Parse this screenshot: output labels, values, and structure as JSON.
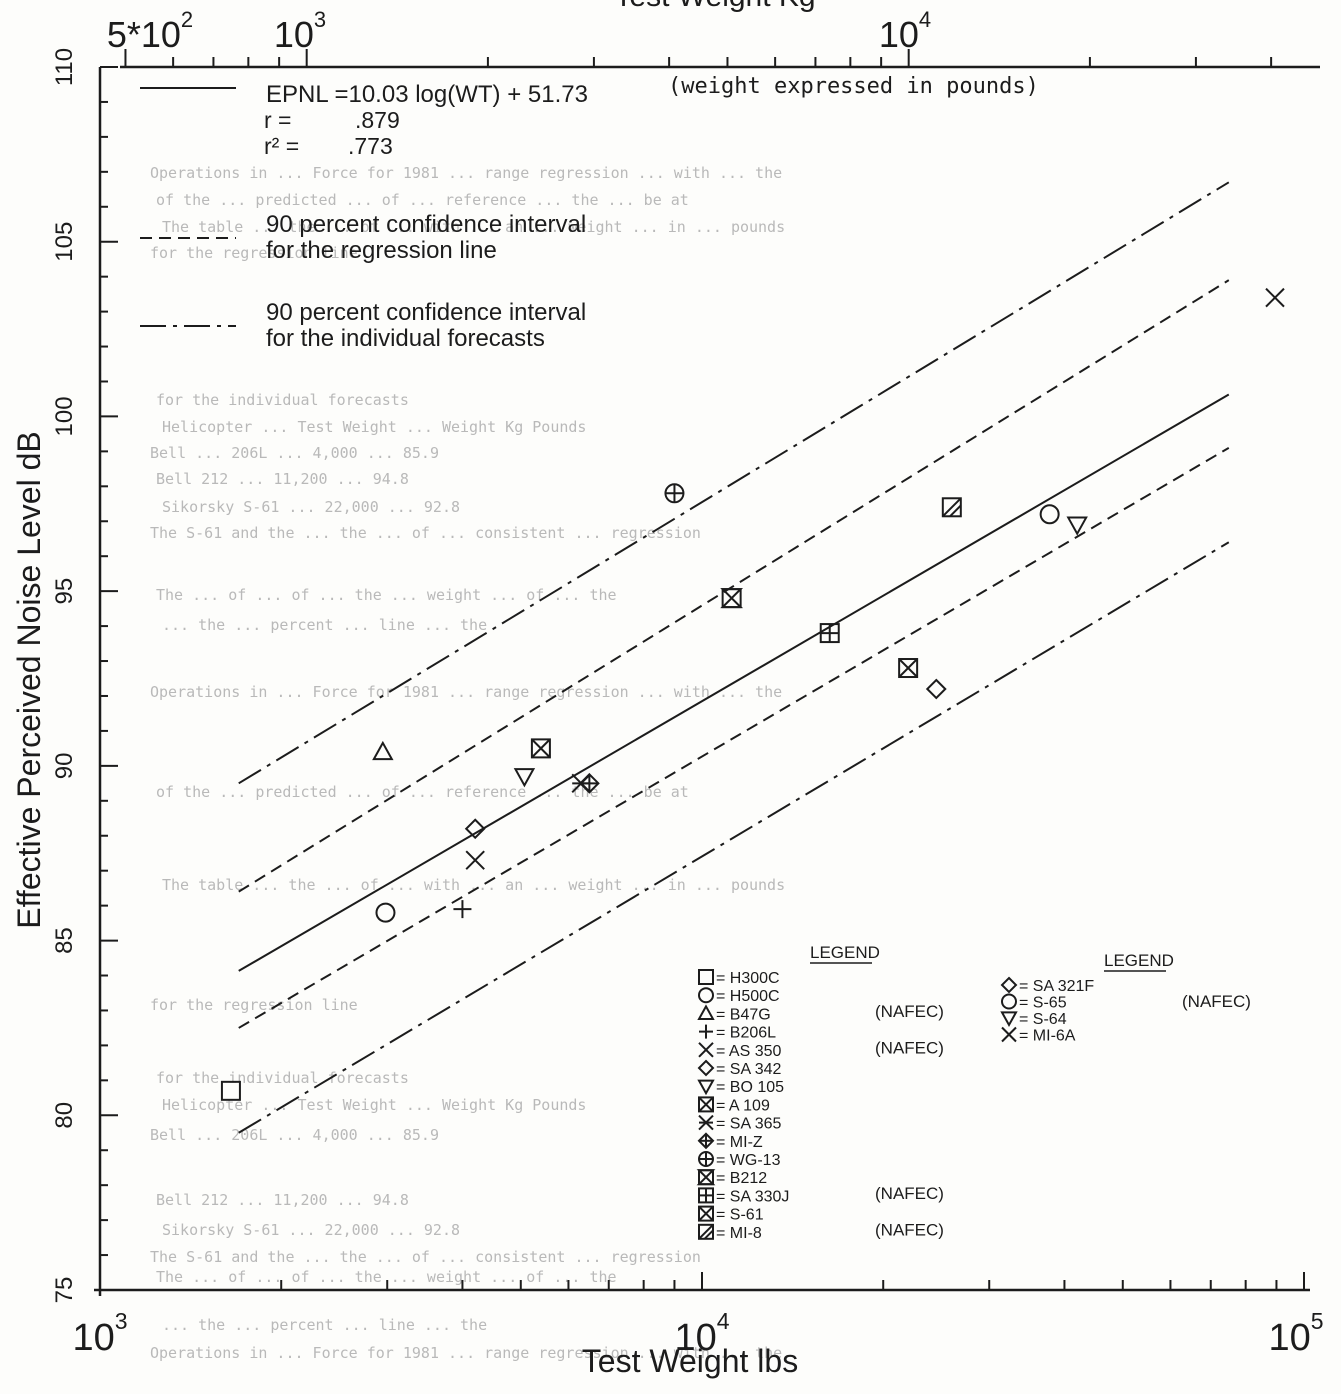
{
  "chart_data": {
    "type": "scatter",
    "xscale": "log",
    "xlabel": "Test Weight lbs",
    "ylabel": "Effective Perceived Noise Level dB",
    "top_axis_label": "Test Weight Kg",
    "xlim": [
      1000,
      100000
    ],
    "ylim": [
      75,
      110
    ],
    "top_xlim_kg": [
      453.6,
      45360
    ],
    "bottom_tick_labels": [
      "10^3",
      "10^4",
      "10^5"
    ],
    "top_tick_labels": [
      "5*10^2",
      "10^3",
      "10^4"
    ],
    "y_tick_labels": [
      "75",
      "80",
      "85",
      "90",
      "95",
      "100",
      "105",
      "110"
    ],
    "y_tick_values": [
      75,
      80,
      85,
      90,
      95,
      100,
      105,
      110
    ],
    "regression": {
      "equation": "EPNL =10.03 log(WT) + 51.73",
      "note": "(weight expressed in pounds)",
      "r_label": "r =",
      "r_value": ".879",
      "r2_label": "r² =",
      "r2_value": ".773",
      "slope": 10.03,
      "intercept": 51.73,
      "x_range": [
        1700,
        75000
      ]
    },
    "bands": [
      {
        "name": "90 percent confidence interval for the regression line",
        "style": "dashed",
        "lower": [
          [
            1700,
            82.5
          ],
          [
            75000,
            99.1
          ]
        ],
        "upper": [
          [
            1700,
            86.4
          ],
          [
            75000,
            103.9
          ]
        ]
      },
      {
        "name": "90 percent confidence interval for the individual forecasts",
        "style": "dashdot",
        "lower": [
          [
            1700,
            79.5
          ],
          [
            75000,
            96.4
          ]
        ],
        "upper": [
          [
            1700,
            89.5
          ],
          [
            75000,
            106.7
          ]
        ]
      }
    ],
    "legend_lines": [
      {
        "style": "solid",
        "lines": [
          "EPNL =10.03 log(WT) + 51.73"
        ]
      },
      {
        "style": "dashed",
        "lines": [
          "90 percent confidence interval",
          "for the regression line"
        ]
      },
      {
        "style": "dashdot",
        "lines": [
          "90 percent confidence interval",
          "for the individual forecasts"
        ]
      }
    ],
    "series": [
      {
        "name": "H300C",
        "marker": "square",
        "x": [
          1650
        ],
        "y": [
          80.7
        ]
      },
      {
        "name": "H500C",
        "marker": "circle",
        "x": [
          2980
        ],
        "y": [
          85.8
        ]
      },
      {
        "name": "B47G",
        "marker": "triangle-up",
        "x": [
          2950
        ],
        "y": [
          90.4
        ]
      },
      {
        "name": "B206L",
        "marker": "plus",
        "x": [
          4000
        ],
        "y": [
          85.9
        ]
      },
      {
        "name": "AS 350",
        "marker": "x",
        "x": [
          4200
        ],
        "y": [
          87.3
        ]
      },
      {
        "name": "SA 342",
        "marker": "diamond",
        "x": [
          4200
        ],
        "y": [
          88.2
        ]
      },
      {
        "name": "BO 105",
        "marker": "triangle-down",
        "x": [
          5070
        ],
        "y": [
          89.7
        ]
      },
      {
        "name": "A 109",
        "marker": "boxed-x",
        "x": [
          5400
        ],
        "y": [
          90.5
        ]
      },
      {
        "name": "SA 365",
        "marker": "asterisk",
        "x": [
          6300
        ],
        "y": [
          89.5
        ]
      },
      {
        "name": "MI-Z",
        "marker": "circle-plus-diamond",
        "x": [
          6500
        ],
        "y": [
          89.5
        ]
      },
      {
        "name": "WG-13",
        "marker": "circle-plus",
        "x": [
          9000
        ],
        "y": [
          97.8
        ]
      },
      {
        "name": "B212",
        "marker": "boxed-hourglass",
        "x": [
          11200
        ],
        "y": [
          94.8
        ]
      },
      {
        "name": "SA 330J",
        "marker": "boxed-plus",
        "x": [
          16300
        ],
        "y": [
          93.8
        ]
      },
      {
        "name": "S-61",
        "marker": "boxed-x",
        "x": [
          22000
        ],
        "y": [
          92.8
        ]
      },
      {
        "name": "MI-8",
        "marker": "boxed-diagonal",
        "x": [
          26000
        ],
        "y": [
          97.4
        ]
      },
      {
        "name": "SA 321F",
        "marker": "diamond",
        "x": [
          24500
        ],
        "y": [
          92.2
        ]
      },
      {
        "name": "S-65",
        "marker": "circle",
        "x": [
          37800
        ],
        "y": [
          97.2
        ]
      },
      {
        "name": "S-64",
        "marker": "triangle-down",
        "x": [
          42000
        ],
        "y": [
          96.9
        ]
      },
      {
        "name": "MI-6A",
        "marker": "x",
        "x": [
          89500
        ],
        "y": [
          103.4
        ]
      }
    ],
    "legend_heading": "LEGEND",
    "legend_heading_2": "LEGEND",
    "legend_left": [
      {
        "marker": "square",
        "label": "= H300C",
        "tag": ""
      },
      {
        "marker": "circle",
        "label": "= H500C",
        "tag": "(NAFEC)"
      },
      {
        "marker": "triangle-up",
        "label": "= B47G",
        "tag": ""
      },
      {
        "marker": "plus",
        "label": "= B206L",
        "tag": "(NAFEC)"
      },
      {
        "marker": "x",
        "label": "= AS 350",
        "tag": ""
      },
      {
        "marker": "diamond",
        "label": "= SA 342",
        "tag": ""
      },
      {
        "marker": "triangle-down",
        "label": "= BO 105",
        "tag": ""
      },
      {
        "marker": "boxed-x",
        "label": "= A 109",
        "tag": ""
      },
      {
        "marker": "asterisk",
        "label": "= SA 365",
        "tag": ""
      },
      {
        "marker": "circle-plus-diamond",
        "label": "= MI-Z",
        "tag": ""
      },
      {
        "marker": "circle-plus",
        "label": "= WG-13",
        "tag": ""
      },
      {
        "marker": "boxed-hourglass",
        "label": "= B212",
        "tag": "(NAFEC)"
      },
      {
        "marker": "boxed-plus",
        "label": "= SA 330J",
        "tag": ""
      },
      {
        "marker": "boxed-x",
        "label": "= S-61",
        "tag": "(NAFEC)"
      },
      {
        "marker": "boxed-diagonal",
        "label": "= MI-8",
        "tag": ""
      }
    ],
    "legend_right": [
      {
        "marker": "diamond",
        "label": "= SA 321F"
      },
      {
        "marker": "circle",
        "label": "= S-65"
      },
      {
        "marker": "triangle-down",
        "label": "= S-64"
      },
      {
        "marker": "x",
        "label": "= MI-6A"
      }
    ],
    "legend_right_tag": "(NAFEC)",
    "grid": false,
    "legend_placement": "bottom-right"
  },
  "background_text": [
    "Operations in ... Force for 1981 ... range regression ... with ... the",
    "of the ... predicted ... of ... reference ... the ... be at",
    "The table ... the ... of ... with ... an ... weight ... in ... pounds",
    "for the regression line",
    "for the individual forecasts",
    "Helicopter ... Test Weight ... Weight Kg Pounds",
    "Bell ... 206L ... 4,000 ... 85.9",
    "Bell 212 ... 11,200 ... 94.8",
    "Sikorsky S-61 ... 22,000 ... 92.8",
    "The S-61 and the ... the ... of ... consistent ... regression",
    "The ... of ... of ... the ... weight ... of ... the",
    "... the ... percent ... line ... the"
  ]
}
